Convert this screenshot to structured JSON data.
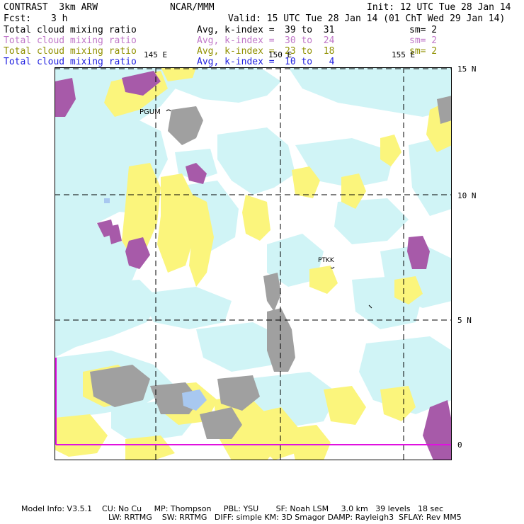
{
  "header": {
    "left_line1": "CONTRAST  3km ARW",
    "center_line1": "NCAR/MMM",
    "right_line1": "Init: 12 UTC Tue 28 Jan 14",
    "fcst_label": "Fcst:",
    "fcst_value": "3 h",
    "valid": "Valid: 15 UTC Tue 28 Jan 14 (01 ChT Wed 29 Jan 14)"
  },
  "legend": [
    {
      "field": "Total cloud mixing ratio",
      "avg": "Avg, k-index =",
      "range": "39 to  31",
      "sm": "sm= 2",
      "color": "#000000"
    },
    {
      "field": "Total cloud mixing ratio",
      "avg": "Avg, k-index =",
      "range": "30 to  24",
      "sm": "sm= 2",
      "color": "#c078c8"
    },
    {
      "field": "Total cloud mixing ratio",
      "avg": "Avg, k-index =",
      "range": "23 to  18",
      "sm": "sm= 2",
      "color": "#909000"
    },
    {
      "field": "Total cloud mixing ratio",
      "avg": "Avg, k-index =",
      "range": "10 to   4",
      "sm": "",
      "color": "#2020e0"
    }
  ],
  "map": {
    "lon_labels": [
      "145 E",
      "150 E",
      "155 E"
    ],
    "lat_labels": [
      "15 N",
      "10 N",
      "5 N",
      "0"
    ],
    "stations": [
      "PGUM",
      "PTKK"
    ],
    "colors": {
      "light_cyan": "#d0f4f6",
      "yellow": "#fbf57c",
      "purple": "#a75aa9",
      "gray": "#a0a0a0",
      "light_blue": "#a8c8f0",
      "magenta_line": "#e010e0"
    }
  },
  "footer": {
    "line1": "Model Info: V3.5.1    CU: No Cu     MP: Thompson     PBL: YSU       SF: Noah LSM     3.0 km   39 levels   18 sec",
    "line2": "LW: RRTMG    SW: RRTMG   DIFF: simple KM: 3D Smagor DAMP: Rayleigh3  SFLAY: Rev MM5"
  }
}
